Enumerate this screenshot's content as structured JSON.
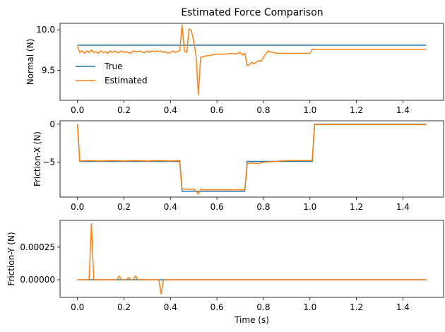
{
  "figure": {
    "title": "Estimated Force Comparison"
  },
  "chart_data": [
    {
      "type": "line",
      "title": "Estimated Force Comparison",
      "xlabel": "",
      "ylabel": "Normal (N)",
      "xlim": [
        -0.075,
        1.575
      ],
      "ylim": [
        9.13,
        10.08
      ],
      "xticks": [
        "0.0",
        "0.2",
        "0.4",
        "0.6",
        "0.8",
        "1.0",
        "1.2",
        "1.4"
      ],
      "yticks": [
        "9.5",
        "10.0"
      ],
      "legend": {
        "position": "lower-left",
        "entries": [
          "True",
          "Estimated"
        ]
      },
      "series": [
        {
          "name": "True",
          "color": "#1f77b4",
          "x": [
            0.0,
            1.5
          ],
          "y": [
            9.81,
            9.81
          ]
        },
        {
          "name": "Estimated",
          "color": "#ff7f0e",
          "x": [
            0.0,
            0.01,
            0.02,
            0.03,
            0.04,
            0.05,
            0.06,
            0.07,
            0.08,
            0.09,
            0.1,
            0.11,
            0.12,
            0.13,
            0.14,
            0.15,
            0.16,
            0.17,
            0.18,
            0.19,
            0.2,
            0.21,
            0.22,
            0.23,
            0.24,
            0.25,
            0.26,
            0.27,
            0.28,
            0.29,
            0.3,
            0.31,
            0.32,
            0.33,
            0.34,
            0.35,
            0.36,
            0.37,
            0.38,
            0.39,
            0.4,
            0.41,
            0.42,
            0.43,
            0.44,
            0.45,
            0.46,
            0.47,
            0.48,
            0.49,
            0.5,
            0.51,
            0.52,
            0.53,
            0.54,
            0.56,
            0.58,
            0.6,
            0.62,
            0.64,
            0.66,
            0.68,
            0.7,
            0.71,
            0.72,
            0.73,
            0.74,
            0.75,
            0.76,
            0.77,
            0.78,
            0.79,
            0.8,
            0.82,
            0.84,
            0.86,
            0.9,
            0.95,
            1.0,
            1.01,
            1.02,
            1.1,
            1.2,
            1.3,
            1.4,
            1.5
          ],
          "y": [
            9.8,
            9.72,
            9.74,
            9.71,
            9.74,
            9.72,
            9.75,
            9.72,
            9.73,
            9.71,
            9.74,
            9.72,
            9.73,
            9.71,
            9.74,
            9.72,
            9.74,
            9.72,
            9.72,
            9.74,
            9.72,
            9.73,
            9.72,
            9.71,
            9.74,
            9.73,
            9.73,
            9.74,
            9.72,
            9.72,
            9.74,
            9.72,
            9.74,
            9.73,
            9.74,
            9.73,
            9.74,
            9.72,
            9.73,
            9.71,
            9.72,
            9.74,
            9.72,
            9.73,
            9.74,
            10.06,
            9.74,
            9.72,
            10.01,
            9.99,
            9.86,
            9.68,
            9.2,
            9.66,
            9.67,
            9.68,
            9.69,
            9.7,
            9.7,
            9.7,
            9.71,
            9.7,
            9.72,
            9.69,
            9.71,
            9.56,
            9.57,
            9.6,
            9.58,
            9.6,
            9.62,
            9.61,
            9.66,
            9.74,
            9.72,
            9.71,
            9.71,
            9.71,
            9.71,
            9.76,
            9.76,
            9.76,
            9.76,
            9.76,
            9.76,
            9.76
          ]
        }
      ]
    },
    {
      "type": "line",
      "xlabel": "",
      "ylabel": "Friction-X (N)",
      "xlim": [
        -0.075,
        1.575
      ],
      "ylim": [
        -9.6,
        0.45
      ],
      "xticks": [
        "0.0",
        "0.2",
        "0.4",
        "0.6",
        "0.8",
        "1.0",
        "1.2",
        "1.4"
      ],
      "yticks": [
        "−5",
        "0"
      ],
      "series": [
        {
          "name": "True",
          "color": "#1f77b4",
          "x": [
            0.0,
            0.01,
            0.44,
            0.45,
            0.72,
            0.73,
            1.01,
            1.02,
            1.5
          ],
          "y": [
            0.0,
            -4.9,
            -4.9,
            -8.83,
            -8.83,
            -4.9,
            -4.9,
            0.0,
            0.0
          ]
        },
        {
          "name": "Estimated",
          "color": "#ff7f0e",
          "x": [
            0.0,
            0.01,
            0.05,
            0.1,
            0.15,
            0.2,
            0.25,
            0.3,
            0.35,
            0.4,
            0.44,
            0.45,
            0.48,
            0.5,
            0.51,
            0.52,
            0.53,
            0.55,
            0.6,
            0.65,
            0.7,
            0.72,
            0.73,
            0.75,
            0.78,
            0.8,
            0.85,
            0.9,
            0.95,
            1.0,
            1.01,
            1.02,
            1.1,
            1.2,
            1.3,
            1.4,
            1.5
          ],
          "y": [
            0.0,
            -4.85,
            -4.8,
            -4.85,
            -4.8,
            -4.85,
            -4.8,
            -4.85,
            -4.8,
            -4.85,
            -4.8,
            -8.5,
            -8.6,
            -8.55,
            -8.8,
            -9.2,
            -8.6,
            -8.65,
            -8.65,
            -8.65,
            -8.65,
            -8.65,
            -5.2,
            -5.1,
            -5.2,
            -5.0,
            -4.9,
            -4.8,
            -4.8,
            -4.8,
            -4.75,
            -0.05,
            -0.05,
            -0.05,
            -0.05,
            -0.05,
            -0.05
          ]
        }
      ]
    },
    {
      "type": "line",
      "xlabel": "Time (s)",
      "ylabel": "Friction-Y (N)",
      "xlim": [
        -0.075,
        1.575
      ],
      "ylim": [
        -0.000135,
        0.000455
      ],
      "xticks": [
        "0.0",
        "0.2",
        "0.4",
        "0.6",
        "0.8",
        "1.0",
        "1.2",
        "1.4"
      ],
      "yticks": [
        "0.00000",
        "0.00025"
      ],
      "series": [
        {
          "name": "True",
          "color": "#1f77b4",
          "x": [
            0.0,
            1.5
          ],
          "y": [
            0.0,
            0.0
          ]
        },
        {
          "name": "Estimated",
          "color": "#ff7f0e",
          "x": [
            0.0,
            0.04,
            0.05,
            0.06,
            0.07,
            0.08,
            0.17,
            0.18,
            0.19,
            0.21,
            0.22,
            0.23,
            0.24,
            0.25,
            0.26,
            0.35,
            0.36,
            0.37,
            0.38,
            1.5
          ],
          "y": [
            0.0,
            0.0,
            0.0,
            0.00043,
            0.0,
            0.0,
            0.0,
            3e-05,
            0.0,
            0.0,
            2e-05,
            0.0,
            0.0,
            3e-05,
            0.0,
            0.0,
            -0.00011,
            0.0,
            0.0,
            0.0
          ]
        }
      ]
    }
  ]
}
